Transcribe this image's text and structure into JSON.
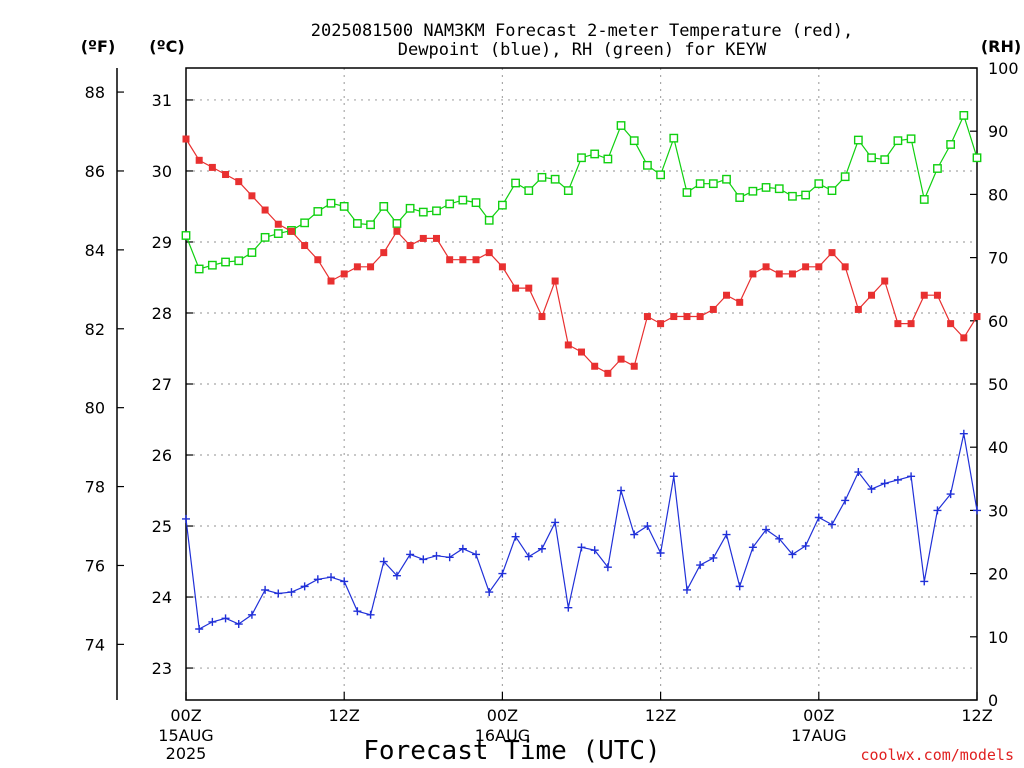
{
  "chart_data": {
    "type": "line",
    "title": [
      "2025081500 NAM3KM Forecast 2-meter Temperature (red),",
      "Dewpoint (blue), RH (green) for KEYW"
    ],
    "xlabel": "Forecast Time (UTC)",
    "unit_f": "(ºF)",
    "unit_c": "(ºC)",
    "unit_rh": "(RH)",
    "credit": "coolwx.com/models",
    "colors": {
      "temperature": "#e83030",
      "dewpoint": "#2030d8",
      "rh": "#10d010",
      "credit": "#e02020"
    },
    "x_range_hours": [
      0,
      60
    ],
    "x_ticks": [
      {
        "hour": 0,
        "label": "00Z",
        "sub": [
          "15AUG",
          "2025"
        ]
      },
      {
        "hour": 12,
        "label": "12Z",
        "sub": []
      },
      {
        "hour": 24,
        "label": "00Z",
        "sub": [
          "16AUG"
        ]
      },
      {
        "hour": 36,
        "label": "12Z",
        "sub": []
      },
      {
        "hour": 48,
        "label": "00Z",
        "sub": [
          "17AUG"
        ]
      },
      {
        "hour": 60,
        "label": "12Z",
        "sub": []
      }
    ],
    "y_celsius_range": [
      22.55,
      31.45
    ],
    "y_celsius_ticks": [
      23,
      24,
      25,
      26,
      27,
      28,
      29,
      30,
      31
    ],
    "y_fahrenheit_ticks": [
      74,
      76,
      78,
      80,
      82,
      84,
      86,
      88
    ],
    "y_rh_range": [
      0,
      100
    ],
    "y_rh_ticks": [
      0,
      10,
      20,
      30,
      40,
      50,
      60,
      70,
      80,
      90,
      100
    ],
    "grid": true,
    "series": [
      {
        "name": "2-meter Temperature",
        "axis": "celsius",
        "marker": "filled-square",
        "values": [
          30.45,
          30.15,
          30.05,
          29.95,
          29.85,
          29.65,
          29.45,
          29.25,
          29.15,
          28.95,
          28.75,
          28.45,
          28.55,
          28.65,
          28.65,
          28.85,
          29.15,
          28.95,
          29.05,
          29.05,
          28.75,
          28.75,
          28.75,
          28.85,
          28.65,
          28.35,
          28.35,
          27.95,
          28.45,
          27.55,
          27.45,
          27.25,
          27.15,
          27.35,
          27.25,
          27.95,
          27.85,
          27.95,
          27.95,
          27.95,
          28.05,
          28.25,
          28.15,
          28.55,
          28.65,
          28.55,
          28.55,
          28.65,
          28.65,
          28.85,
          28.65,
          28.05,
          28.25,
          28.45,
          27.85,
          27.85,
          28.25,
          28.25,
          27.85,
          27.65,
          27.95
        ]
      },
      {
        "name": "Dewpoint",
        "axis": "celsius",
        "marker": "plus",
        "values": [
          25.1,
          23.55,
          23.65,
          23.7,
          23.62,
          23.75,
          24.1,
          24.05,
          24.07,
          24.15,
          24.25,
          24.28,
          24.22,
          23.8,
          23.75,
          24.5,
          24.3,
          24.6,
          24.53,
          24.58,
          24.56,
          24.68,
          24.6,
          24.07,
          24.33,
          24.85,
          24.57,
          24.68,
          25.05,
          23.85,
          24.7,
          24.66,
          24.42,
          25.5,
          24.88,
          25.0,
          24.62,
          25.7,
          24.1,
          24.45,
          24.55,
          24.88,
          24.15,
          24.7,
          24.95,
          24.82,
          24.6,
          24.72,
          25.12,
          25.02,
          25.36,
          25.76,
          25.52,
          25.6,
          25.65,
          25.7,
          24.22,
          25.22,
          25.45,
          26.3,
          25.22
        ]
      },
      {
        "name": "RH",
        "axis": "rh",
        "marker": "open-square",
        "values": [
          73.5,
          68.2,
          68.8,
          69.3,
          69.5,
          70.8,
          73.2,
          73.8,
          74.3,
          75.5,
          77.3,
          78.6,
          78.1,
          75.4,
          75.2,
          78.1,
          75.4,
          77.8,
          77.2,
          77.4,
          78.5,
          79.1,
          78.7,
          75.9,
          78.3,
          81.8,
          80.6,
          82.7,
          82.4,
          80.6,
          85.8,
          86.4,
          85.6,
          90.9,
          88.5,
          84.6,
          83.1,
          88.9,
          80.3,
          81.7,
          81.7,
          82.4,
          79.5,
          80.5,
          81.1,
          80.9,
          79.7,
          79.9,
          81.7,
          80.6,
          82.8,
          88.6,
          85.8,
          85.5,
          88.5,
          88.8,
          79.2,
          84.1,
          87.9,
          92.5,
          85.8
        ]
      }
    ]
  }
}
